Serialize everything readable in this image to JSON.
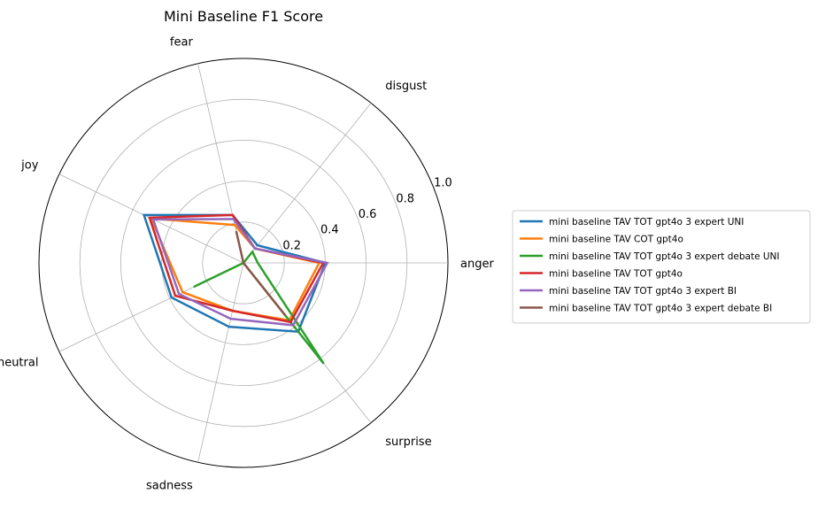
{
  "chart_data": {
    "type": "radar",
    "title": "Mini Baseline F1 Score",
    "categories": [
      "anger",
      "disgust",
      "fear",
      "joy",
      "neutral",
      "sadness",
      "surprise"
    ],
    "rlim": [
      0,
      1.0
    ],
    "rticks": [
      0.2,
      0.4,
      0.6,
      0.8,
      1.0
    ],
    "rtick_labels": [
      "0.2",
      "0.4",
      "0.6",
      "0.8",
      "1.0"
    ],
    "grid": true,
    "legend_position": "right",
    "series": [
      {
        "name": "mini baseline TAV TOT gpt4o 3 expert UNI",
        "color": "#1f77b4",
        "values": [
          0.4,
          0.11,
          0.24,
          0.54,
          0.39,
          0.32,
          0.43
        ],
        "fill": false
      },
      {
        "name": "mini baseline TAV COT gpt4o",
        "color": "#ff7f0e",
        "values": [
          0.37,
          0.09,
          0.19,
          0.5,
          0.33,
          0.24,
          0.36
        ],
        "fill": false
      },
      {
        "name": "mini baseline TAV TOT gpt4o 3 expert debate UNI",
        "color": "#2ca02c",
        "values": [
          0.07,
          0.07,
          0.0,
          0.0,
          0.27,
          0.0,
          0.63
        ],
        "fill": false
      },
      {
        "name": "mini baseline TAV TOT gpt4o",
        "color": "#d62728",
        "values": [
          0.39,
          0.09,
          0.24,
          0.51,
          0.37,
          0.24,
          0.37
        ],
        "fill": false
      },
      {
        "name": "mini baseline TAV TOT gpt4o 3 expert BI",
        "color": "#9467bd",
        "values": [
          0.41,
          0.09,
          0.22,
          0.49,
          0.35,
          0.28,
          0.39
        ],
        "fill": false
      },
      {
        "name": "mini baseline TAV TOT gpt4o 3 expert debate BI",
        "color": "#8c564b",
        "values": [
          0.0,
          0.0,
          0.16,
          0.0,
          0.0,
          0.0,
          0.33
        ],
        "fill": true
      }
    ]
  }
}
